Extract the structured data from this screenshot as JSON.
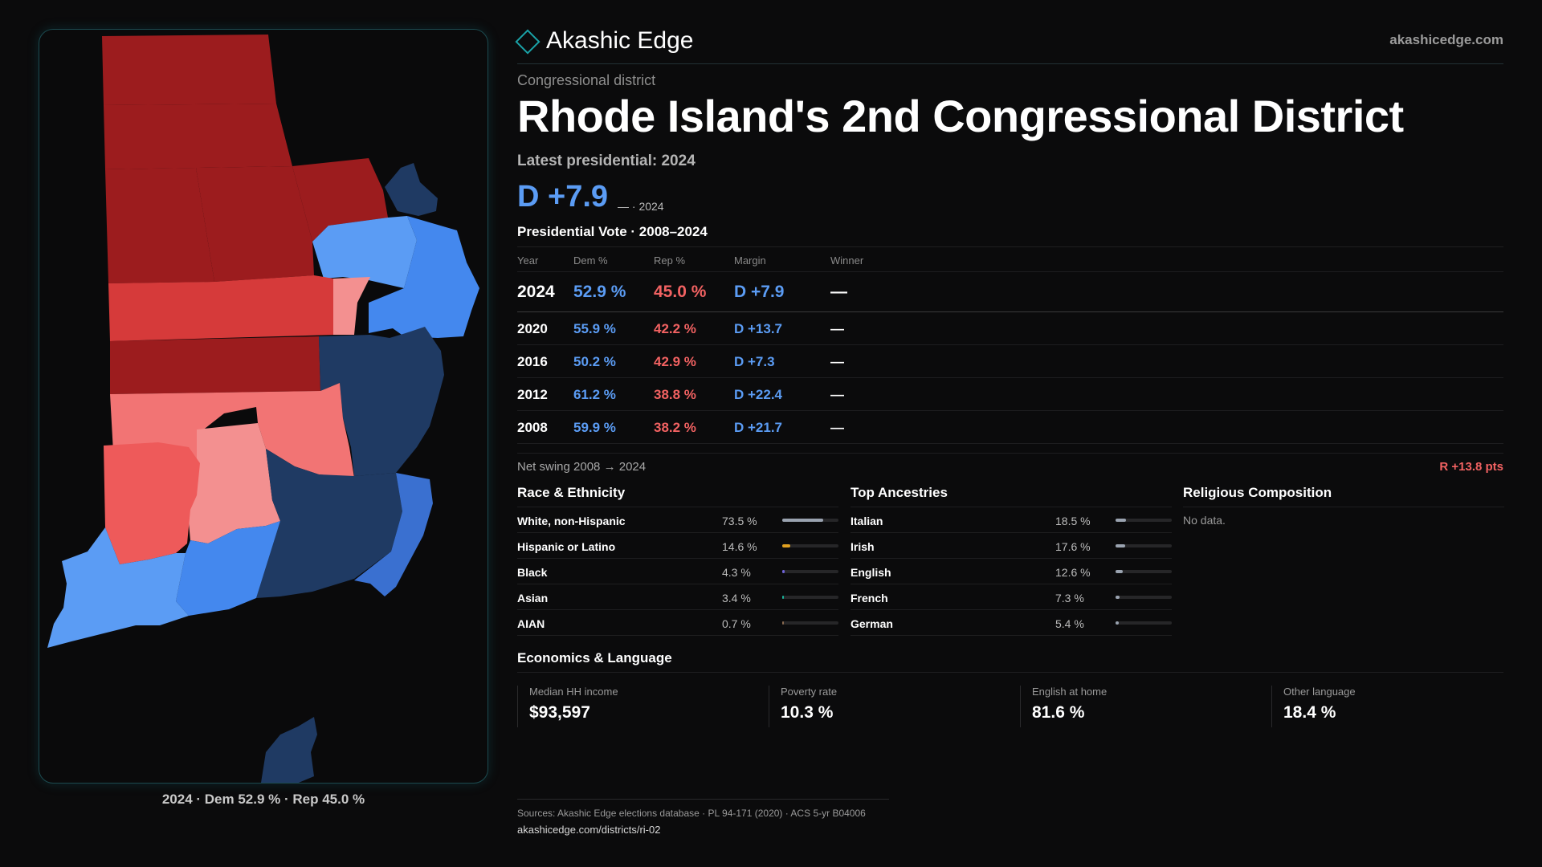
{
  "brand": {
    "name": "Akashic Edge",
    "url": "akashicedge.com"
  },
  "kicker": "Congressional district",
  "title": "Rhode Island's 2nd Congressional District",
  "latest_label": "Latest presidential: 2024",
  "latest_margin": "D +7.9",
  "latest_margin_sub": "— · 2024",
  "vote_section_title": "Presidential Vote · 2008–2024",
  "vote_columns": {
    "year": "Year",
    "dem": "Dem %",
    "rep": "Rep %",
    "margin": "Margin",
    "winner": "Winner"
  },
  "vote_rows": [
    {
      "year": "2024",
      "dem": "52.9 %",
      "rep": "45.0 %",
      "margin": "D +7.9",
      "winner": "—"
    },
    {
      "year": "2020",
      "dem": "55.9 %",
      "rep": "42.2 %",
      "margin": "D +13.7",
      "winner": "—"
    },
    {
      "year": "2016",
      "dem": "50.2 %",
      "rep": "42.9 %",
      "margin": "D +7.3",
      "winner": "—"
    },
    {
      "year": "2012",
      "dem": "61.2 %",
      "rep": "38.8 %",
      "margin": "D +22.4",
      "winner": "—"
    },
    {
      "year": "2008",
      "dem": "59.9 %",
      "rep": "38.2 %",
      "margin": "D +21.7",
      "winner": "—"
    }
  ],
  "swing": {
    "label": "Net swing 2008 → 2024",
    "value": "R +13.8 pts"
  },
  "race": {
    "title": "Race & Ethnicity",
    "rows": [
      {
        "label": "White, non-Hispanic",
        "pct": "73.5 %",
        "value": 73.5,
        "color": "#9aa3b0"
      },
      {
        "label": "Hispanic or Latino",
        "pct": "14.6 %",
        "value": 14.6,
        "color": "#e0a020"
      },
      {
        "label": "Black",
        "pct": "4.3 %",
        "value": 4.3,
        "color": "#6f63d9"
      },
      {
        "label": "Asian",
        "pct": "3.4 %",
        "value": 3.4,
        "color": "#19b39a"
      },
      {
        "label": "AIAN",
        "pct": "0.7 %",
        "value": 0.7,
        "color": "#8a6a50"
      }
    ]
  },
  "ancestry": {
    "title": "Top Ancestries",
    "rows": [
      {
        "label": "Italian",
        "pct": "18.5 %",
        "value": 18.5,
        "color": "#9aa3b0"
      },
      {
        "label": "Irish",
        "pct": "17.6 %",
        "value": 17.6,
        "color": "#9aa3b0"
      },
      {
        "label": "English",
        "pct": "12.6 %",
        "value": 12.6,
        "color": "#9aa3b0"
      },
      {
        "label": "French",
        "pct": "7.3 %",
        "value": 7.3,
        "color": "#9aa3b0"
      },
      {
        "label": "German",
        "pct": "5.4 %",
        "value": 5.4,
        "color": "#9aa3b0"
      }
    ]
  },
  "religion": {
    "title": "Religious Composition",
    "empty": "No data."
  },
  "economics": {
    "title": "Economics & Language",
    "cards": [
      {
        "label": "Median HH income",
        "value": "$93,597"
      },
      {
        "label": "Poverty rate",
        "value": "10.3 %"
      },
      {
        "label": "English at home",
        "value": "81.6 %"
      },
      {
        "label": "Other language",
        "value": "18.4 %"
      }
    ]
  },
  "footer": {
    "sources": "Sources: Akashic Edge elections database · PL 94-171 (2020) · ACS 5-yr B04006",
    "url": "akashicedge.com/districts/ri-02"
  },
  "map_caption": "2024 · Dem 52.9 % · Rep 45.0 %",
  "colors": {
    "dem_text": "#5b9cf4",
    "rep_text": "#f26262",
    "accent": "#1aa3a8"
  }
}
